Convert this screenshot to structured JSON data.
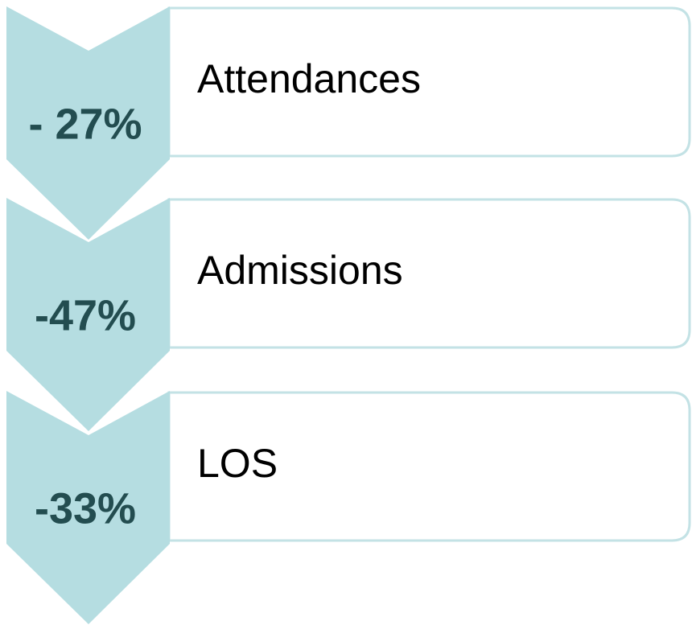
{
  "items": [
    {
      "label": "Attendances",
      "change": "- 27%"
    },
    {
      "label": "Admissions",
      "change": "-47%"
    },
    {
      "label": "LOS",
      "change": "-33%"
    }
  ]
}
